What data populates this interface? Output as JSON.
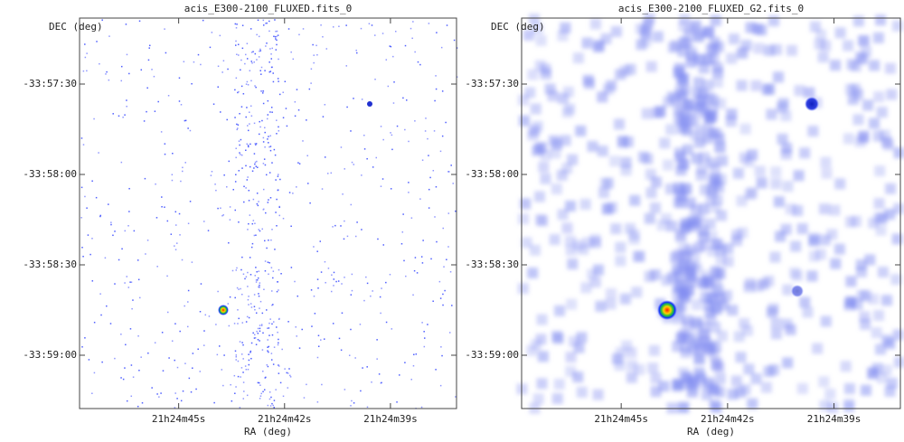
{
  "chart_data": [
    {
      "type": "image",
      "title": "acis_E300-2100_FLUXED.fits_0",
      "xlabel": "RA (deg)",
      "ylabel": "DEC (deg)",
      "xlim": [
        321.1992,
        321.1547
      ],
      "ylim": [
        -33.98825,
        -33.95225
      ],
      "xticks": [
        {
          "value": 321.1875,
          "label": "21h24m45s"
        },
        {
          "value": 321.175,
          "label": "21h24m42s"
        },
        {
          "value": 321.1625,
          "label": "21h24m39s"
        }
      ],
      "yticks": [
        {
          "value": -33.958333,
          "label": "-33:57:30"
        },
        {
          "value": -33.966667,
          "label": "-33:58:00"
        },
        {
          "value": -33.975,
          "label": "-33:58:30"
        },
        {
          "value": -33.983333,
          "label": "-33:59:00"
        }
      ]
    },
    {
      "type": "image",
      "title": "acis_E300-2100_FLUXED_G2.fits_0",
      "xlabel": "RA (deg)",
      "ylabel": "DEC (deg)",
      "xlim": [
        321.1992,
        321.1547
      ],
      "ylim": [
        -33.98825,
        -33.95225
      ],
      "xticks": [
        {
          "value": 321.1875,
          "label": "21h24m45s"
        },
        {
          "value": 321.175,
          "label": "21h24m42s"
        },
        {
          "value": 321.1625,
          "label": "21h24m39s"
        }
      ],
      "yticks": [
        {
          "value": -33.958333,
          "label": "-33:57:30"
        },
        {
          "value": -33.966667,
          "label": "-33:58:00"
        },
        {
          "value": -33.975,
          "label": "-33:58:30"
        },
        {
          "value": -33.983333,
          "label": "-33:59:00"
        }
      ]
    }
  ]
}
